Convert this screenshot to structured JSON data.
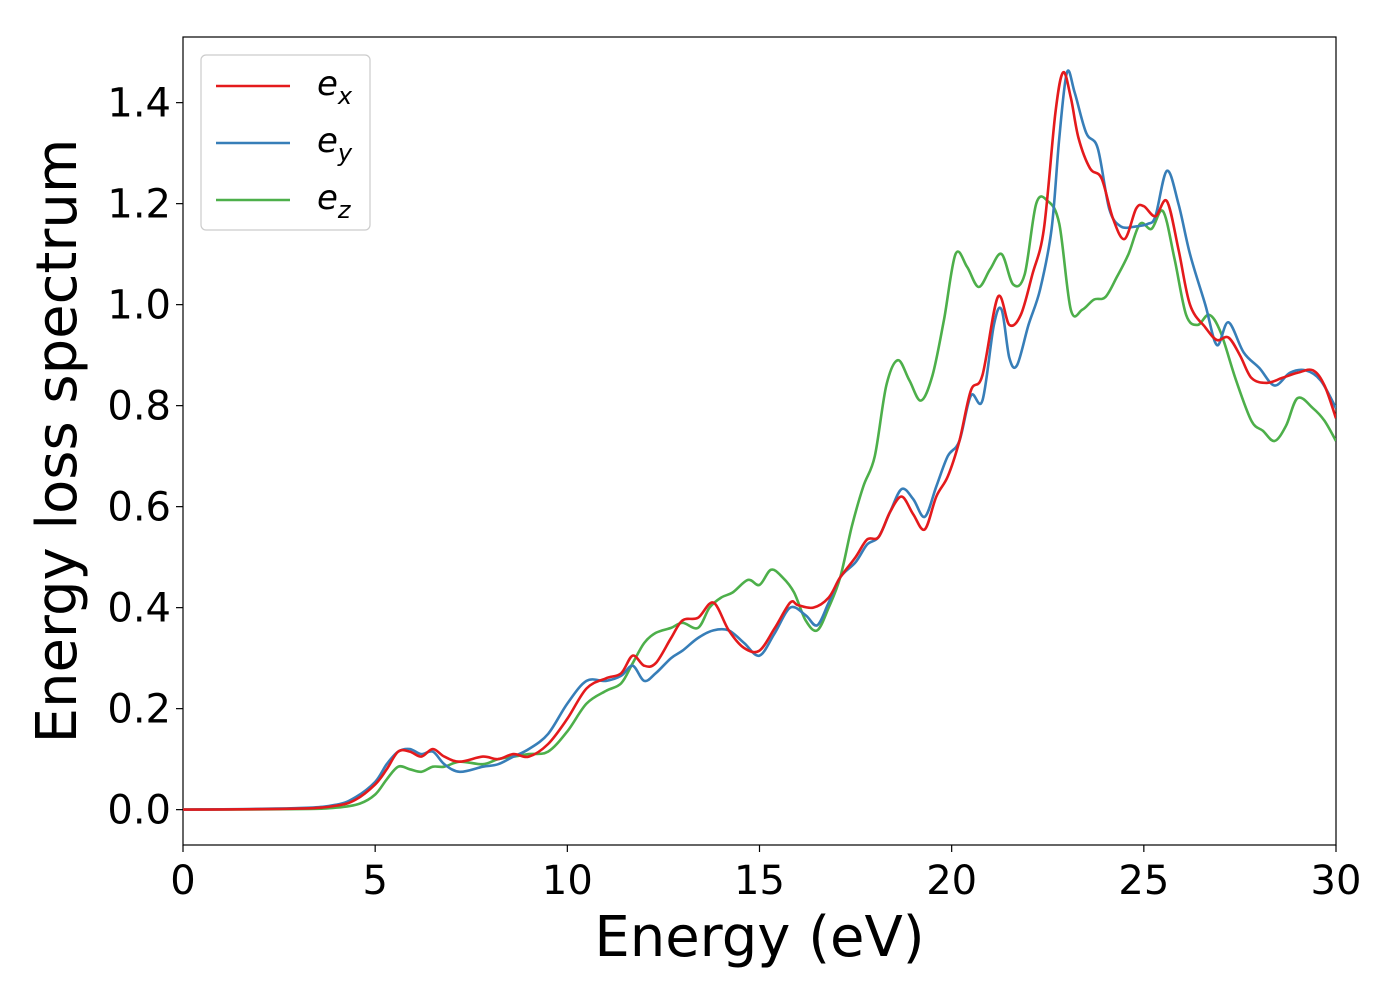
{
  "chart_data": {
    "type": "line",
    "title": "",
    "xlabel": "Energy (eV)",
    "ylabel": "Energy loss spectrum",
    "xlim": [
      0,
      30
    ],
    "ylim": [
      -0.07,
      1.53
    ],
    "xticks": [
      "0",
      "5",
      "10",
      "15",
      "20",
      "25",
      "30"
    ],
    "yticks": [
      "0.0",
      "0.2",
      "0.4",
      "0.6",
      "0.8",
      "1.0",
      "1.2",
      "1.4"
    ],
    "grid": false,
    "legend_position": "top-left",
    "series": [
      {
        "name": "e",
        "sub": "x",
        "color": "#e41a1c",
        "points": [
          [
            0,
            0
          ],
          [
            3,
            0.002
          ],
          [
            4,
            0.008
          ],
          [
            4.5,
            0.02
          ],
          [
            5,
            0.05
          ],
          [
            5.3,
            0.08
          ],
          [
            5.6,
            0.115
          ],
          [
            5.9,
            0.115
          ],
          [
            6.2,
            0.105
          ],
          [
            6.5,
            0.12
          ],
          [
            6.8,
            0.105
          ],
          [
            7.2,
            0.095
          ],
          [
            7.8,
            0.105
          ],
          [
            8.2,
            0.1
          ],
          [
            8.6,
            0.11
          ],
          [
            9,
            0.105
          ],
          [
            9.5,
            0.13
          ],
          [
            10,
            0.18
          ],
          [
            10.5,
            0.24
          ],
          [
            11,
            0.26
          ],
          [
            11.4,
            0.27
          ],
          [
            11.7,
            0.305
          ],
          [
            12,
            0.285
          ],
          [
            12.3,
            0.29
          ],
          [
            12.7,
            0.34
          ],
          [
            13,
            0.375
          ],
          [
            13.4,
            0.38
          ],
          [
            13.8,
            0.41
          ],
          [
            14.2,
            0.355
          ],
          [
            14.6,
            0.32
          ],
          [
            15,
            0.315
          ],
          [
            15.4,
            0.36
          ],
          [
            15.8,
            0.41
          ],
          [
            16,
            0.405
          ],
          [
            16.4,
            0.4
          ],
          [
            16.8,
            0.42
          ],
          [
            17.1,
            0.46
          ],
          [
            17.5,
            0.5
          ],
          [
            17.8,
            0.535
          ],
          [
            18.1,
            0.54
          ],
          [
            18.4,
            0.59
          ],
          [
            18.7,
            0.62
          ],
          [
            19,
            0.585
          ],
          [
            19.3,
            0.555
          ],
          [
            19.6,
            0.62
          ],
          [
            19.9,
            0.66
          ],
          [
            20.2,
            0.73
          ],
          [
            20.5,
            0.83
          ],
          [
            20.8,
            0.86
          ],
          [
            21.2,
            1.015
          ],
          [
            21.5,
            0.96
          ],
          [
            21.8,
            0.98
          ],
          [
            22.1,
            1.06
          ],
          [
            22.4,
            1.15
          ],
          [
            22.7,
            1.38
          ],
          [
            22.9,
            1.46
          ],
          [
            23.1,
            1.41
          ],
          [
            23.3,
            1.33
          ],
          [
            23.6,
            1.27
          ],
          [
            23.9,
            1.25
          ],
          [
            24.2,
            1.17
          ],
          [
            24.5,
            1.13
          ],
          [
            24.8,
            1.19
          ],
          [
            25,
            1.195
          ],
          [
            25.3,
            1.175
          ],
          [
            25.6,
            1.205
          ],
          [
            25.9,
            1.11
          ],
          [
            26.2,
            1.0
          ],
          [
            26.6,
            0.955
          ],
          [
            26.9,
            0.93
          ],
          [
            27.2,
            0.935
          ],
          [
            27.5,
            0.9
          ],
          [
            27.8,
            0.855
          ],
          [
            28.2,
            0.845
          ],
          [
            28.6,
            0.855
          ],
          [
            29,
            0.865
          ],
          [
            29.4,
            0.87
          ],
          [
            29.7,
            0.84
          ],
          [
            30,
            0.775
          ]
        ]
      },
      {
        "name": "e",
        "sub": "y",
        "color": "#377eb8",
        "points": [
          [
            0,
            0
          ],
          [
            3,
            0.003
          ],
          [
            4,
            0.01
          ],
          [
            4.5,
            0.025
          ],
          [
            5,
            0.055
          ],
          [
            5.3,
            0.09
          ],
          [
            5.6,
            0.115
          ],
          [
            5.9,
            0.12
          ],
          [
            6.2,
            0.11
          ],
          [
            6.5,
            0.115
          ],
          [
            6.8,
            0.09
          ],
          [
            7.2,
            0.075
          ],
          [
            7.8,
            0.085
          ],
          [
            8.2,
            0.09
          ],
          [
            8.6,
            0.105
          ],
          [
            9,
            0.12
          ],
          [
            9.5,
            0.15
          ],
          [
            10,
            0.21
          ],
          [
            10.5,
            0.255
          ],
          [
            11,
            0.255
          ],
          [
            11.4,
            0.265
          ],
          [
            11.7,
            0.285
          ],
          [
            12,
            0.255
          ],
          [
            12.3,
            0.27
          ],
          [
            12.7,
            0.3
          ],
          [
            13,
            0.315
          ],
          [
            13.4,
            0.34
          ],
          [
            13.8,
            0.355
          ],
          [
            14.2,
            0.355
          ],
          [
            14.6,
            0.33
          ],
          [
            15,
            0.305
          ],
          [
            15.4,
            0.35
          ],
          [
            15.8,
            0.4
          ],
          [
            16.2,
            0.385
          ],
          [
            16.5,
            0.365
          ],
          [
            16.8,
            0.41
          ],
          [
            17.1,
            0.46
          ],
          [
            17.5,
            0.49
          ],
          [
            17.8,
            0.525
          ],
          [
            18.1,
            0.54
          ],
          [
            18.4,
            0.59
          ],
          [
            18.7,
            0.635
          ],
          [
            19,
            0.615
          ],
          [
            19.3,
            0.58
          ],
          [
            19.6,
            0.64
          ],
          [
            19.9,
            0.7
          ],
          [
            20.2,
            0.73
          ],
          [
            20.5,
            0.82
          ],
          [
            20.8,
            0.81
          ],
          [
            21.1,
            0.96
          ],
          [
            21.3,
            0.99
          ],
          [
            21.5,
            0.895
          ],
          [
            21.7,
            0.88
          ],
          [
            22,
            0.96
          ],
          [
            22.3,
            1.03
          ],
          [
            22.6,
            1.15
          ],
          [
            22.8,
            1.33
          ],
          [
            23,
            1.46
          ],
          [
            23.2,
            1.42
          ],
          [
            23.5,
            1.34
          ],
          [
            23.8,
            1.31
          ],
          [
            24.1,
            1.19
          ],
          [
            24.4,
            1.155
          ],
          [
            24.8,
            1.155
          ],
          [
            25.1,
            1.16
          ],
          [
            25.3,
            1.175
          ],
          [
            25.6,
            1.265
          ],
          [
            25.9,
            1.2
          ],
          [
            26.2,
            1.1
          ],
          [
            26.6,
            1.0
          ],
          [
            26.9,
            0.92
          ],
          [
            27.2,
            0.965
          ],
          [
            27.6,
            0.905
          ],
          [
            28,
            0.875
          ],
          [
            28.4,
            0.84
          ],
          [
            28.8,
            0.865
          ],
          [
            29.2,
            0.87
          ],
          [
            29.6,
            0.85
          ],
          [
            30,
            0.795
          ]
        ]
      },
      {
        "name": "e",
        "sub": "z",
        "color": "#4daf4a",
        "points": [
          [
            0,
            0
          ],
          [
            3,
            0.001
          ],
          [
            4,
            0.004
          ],
          [
            4.6,
            0.012
          ],
          [
            5,
            0.03
          ],
          [
            5.3,
            0.06
          ],
          [
            5.6,
            0.085
          ],
          [
            5.9,
            0.08
          ],
          [
            6.2,
            0.075
          ],
          [
            6.5,
            0.085
          ],
          [
            6.8,
            0.085
          ],
          [
            7.2,
            0.095
          ],
          [
            7.8,
            0.09
          ],
          [
            8.2,
            0.1
          ],
          [
            8.6,
            0.105
          ],
          [
            9,
            0.11
          ],
          [
            9.5,
            0.115
          ],
          [
            10,
            0.155
          ],
          [
            10.5,
            0.21
          ],
          [
            11,
            0.235
          ],
          [
            11.4,
            0.25
          ],
          [
            11.7,
            0.29
          ],
          [
            12,
            0.33
          ],
          [
            12.3,
            0.35
          ],
          [
            12.7,
            0.36
          ],
          [
            13,
            0.37
          ],
          [
            13.4,
            0.36
          ],
          [
            13.7,
            0.4
          ],
          [
            14,
            0.42
          ],
          [
            14.3,
            0.43
          ],
          [
            14.7,
            0.455
          ],
          [
            15,
            0.445
          ],
          [
            15.3,
            0.475
          ],
          [
            15.6,
            0.46
          ],
          [
            15.9,
            0.43
          ],
          [
            16.2,
            0.375
          ],
          [
            16.5,
            0.355
          ],
          [
            16.8,
            0.4
          ],
          [
            17.1,
            0.46
          ],
          [
            17.4,
            0.56
          ],
          [
            17.7,
            0.64
          ],
          [
            18,
            0.7
          ],
          [
            18.3,
            0.84
          ],
          [
            18.6,
            0.89
          ],
          [
            18.9,
            0.85
          ],
          [
            19.2,
            0.81
          ],
          [
            19.5,
            0.86
          ],
          [
            19.8,
            0.97
          ],
          [
            20.1,
            1.1
          ],
          [
            20.4,
            1.075
          ],
          [
            20.7,
            1.035
          ],
          [
            21,
            1.07
          ],
          [
            21.3,
            1.1
          ],
          [
            21.6,
            1.04
          ],
          [
            21.9,
            1.06
          ],
          [
            22.2,
            1.2
          ],
          [
            22.5,
            1.205
          ],
          [
            22.8,
            1.16
          ],
          [
            23.1,
            0.99
          ],
          [
            23.4,
            0.99
          ],
          [
            23.7,
            1.01
          ],
          [
            24,
            1.015
          ],
          [
            24.3,
            1.055
          ],
          [
            24.6,
            1.1
          ],
          [
            24.9,
            1.16
          ],
          [
            25.2,
            1.15
          ],
          [
            25.5,
            1.185
          ],
          [
            25.8,
            1.09
          ],
          [
            26.1,
            0.98
          ],
          [
            26.4,
            0.96
          ],
          [
            26.7,
            0.98
          ],
          [
            27,
            0.945
          ],
          [
            27.4,
            0.85
          ],
          [
            27.8,
            0.77
          ],
          [
            28.1,
            0.75
          ],
          [
            28.4,
            0.73
          ],
          [
            28.7,
            0.76
          ],
          [
            29,
            0.815
          ],
          [
            29.4,
            0.795
          ],
          [
            29.7,
            0.77
          ],
          [
            30,
            0.73
          ]
        ]
      }
    ]
  }
}
